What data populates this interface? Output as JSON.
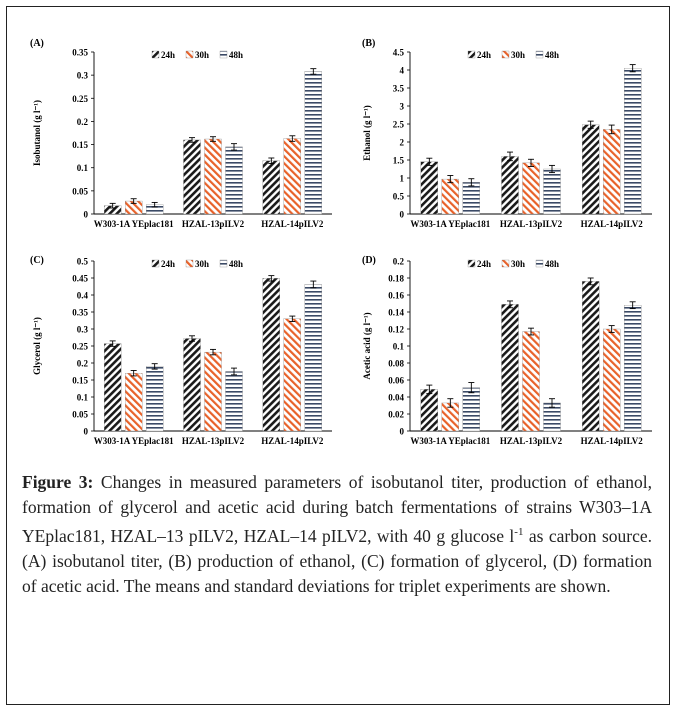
{
  "caption": {
    "label": "Figure 3:",
    "text": "Changes in measured parameters of isobutanol titer, production of ethanol, formation of glycerol and acetic acid during batch fermentations of strains W303–1A YEplac181, HZAL–13 pILV2, HZAL–14 pILV2, with 40 g glucose l-1 as carbon source. (A) isobutanol titer, (B) production of ethanol, (C) formation of glycerol, (D) formation of acetic acid. The means and standard deviations for triplet experiments are shown."
  },
  "colors": {
    "24h": "#1a1a1a",
    "30h": "#e8622a",
    "48h": "#3b4a66"
  },
  "chart_data": [
    {
      "type": "bar",
      "panel_label": "(A)",
      "ylabel": "Isobutanol (g l⁻¹)",
      "ylim": [
        0,
        0.35
      ],
      "yticks": [
        "0",
        "0.05",
        "0.1",
        "0.15",
        "0.2",
        "0.25",
        "0.3",
        "0.35"
      ],
      "categories": [
        "W303-1A YEplac181",
        "HZAL-13pILV2",
        "HZAL-14pILV2"
      ],
      "legend": [
        "24h",
        "30h",
        "48h"
      ],
      "series": [
        {
          "name": "24h",
          "values": [
            0.018,
            0.16,
            0.115
          ],
          "errors": [
            0.005,
            0.005,
            0.006
          ]
        },
        {
          "name": "30h",
          "values": [
            0.028,
            0.162,
            0.163
          ],
          "errors": [
            0.005,
            0.005,
            0.006
          ]
        },
        {
          "name": "48h",
          "values": [
            0.02,
            0.145,
            0.308
          ],
          "errors": [
            0.005,
            0.007,
            0.006
          ]
        }
      ]
    },
    {
      "type": "bar",
      "panel_label": "(B)",
      "ylabel": "Ethanol (g l⁻¹)",
      "ylim": [
        0,
        4.5
      ],
      "yticks": [
        "0",
        "0.5",
        "1",
        "1.5",
        "2",
        "2.5",
        "3",
        "3.5",
        "4",
        "4.5"
      ],
      "categories": [
        "W303-1A YEplac181",
        "HZAL-13pILV2",
        "HZAL-14pILV2"
      ],
      "legend": [
        "24h",
        "30h",
        "48h"
      ],
      "series": [
        {
          "name": "24h",
          "values": [
            1.45,
            1.6,
            2.48
          ],
          "errors": [
            0.1,
            0.12,
            0.1
          ]
        },
        {
          "name": "30h",
          "values": [
            0.97,
            1.42,
            2.35
          ],
          "errors": [
            0.1,
            0.1,
            0.12
          ]
        },
        {
          "name": "48h",
          "values": [
            0.88,
            1.25,
            4.05
          ],
          "errors": [
            0.1,
            0.1,
            0.1
          ]
        }
      ]
    },
    {
      "type": "bar",
      "panel_label": "(C)",
      "ylabel": "Glycerol (g l⁻¹)",
      "ylim": [
        0,
        0.5
      ],
      "yticks": [
        "0",
        "0.05",
        "0.1",
        "0.15",
        "0.2",
        "0.25",
        "0.3",
        "0.35",
        "0.4",
        "0.45",
        "0.5"
      ],
      "categories": [
        "W303-1A YEplac181",
        "HZAL-13pILV2",
        "HZAL-14pILV2"
      ],
      "legend": [
        "24h",
        "30h",
        "48h"
      ],
      "series": [
        {
          "name": "24h",
          "values": [
            0.257,
            0.272,
            0.449
          ],
          "errors": [
            0.008,
            0.008,
            0.008
          ]
        },
        {
          "name": "30h",
          "values": [
            0.17,
            0.232,
            0.33
          ],
          "errors": [
            0.008,
            0.008,
            0.008
          ]
        },
        {
          "name": "48h",
          "values": [
            0.19,
            0.175,
            0.431
          ],
          "errors": [
            0.008,
            0.01,
            0.01
          ]
        }
      ]
    },
    {
      "type": "bar",
      "panel_label": "(D)",
      "ylabel": "Acetic acid (g l⁻¹)",
      "ylim": [
        0,
        0.2
      ],
      "yticks": [
        "0",
        "0.02",
        "0.04",
        "0.06",
        "0.08",
        "0.1",
        "0.12",
        "0.14",
        "0.16",
        "0.18",
        "0.2"
      ],
      "categories": [
        "W303-1A YEplac181",
        "HZAL-13pILV2",
        "HZAL-14pILV2"
      ],
      "legend": [
        "24h",
        "30h",
        "48h"
      ],
      "series": [
        {
          "name": "24h",
          "values": [
            0.049,
            0.149,
            0.176
          ],
          "errors": [
            0.005,
            0.004,
            0.004
          ]
        },
        {
          "name": "30h",
          "values": [
            0.033,
            0.117,
            0.12
          ],
          "errors": [
            0.005,
            0.004,
            0.004
          ]
        },
        {
          "name": "48h",
          "values": [
            0.051,
            0.033,
            0.148
          ],
          "errors": [
            0.006,
            0.005,
            0.004
          ]
        }
      ]
    }
  ]
}
